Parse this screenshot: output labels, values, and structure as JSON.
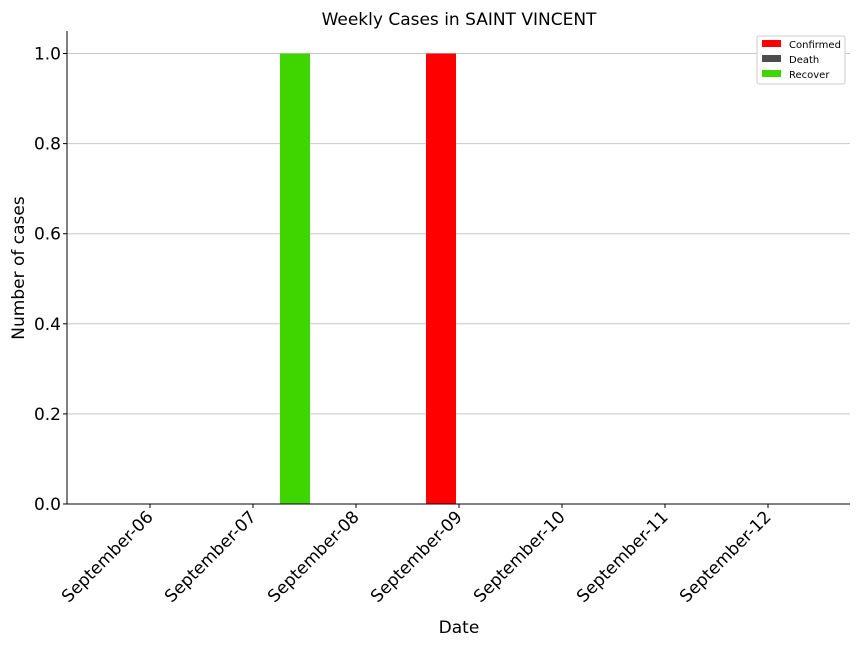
{
  "chart_data": {
    "type": "bar",
    "title": "Weekly Cases in SAINT VINCENT",
    "xlabel": "Date",
    "ylabel": "Number of cases",
    "categories": [
      "September-06",
      "September-07",
      "September-08",
      "September-09",
      "September-10",
      "September-11",
      "September-12"
    ],
    "series": [
      {
        "name": "Confirmed",
        "color": "#ff0000",
        "values": [
          0,
          0,
          0,
          1,
          0,
          0,
          0
        ]
      },
      {
        "name": "Death",
        "color": "#4d4d4d",
        "values": [
          0,
          0,
          0,
          0,
          0,
          0,
          0
        ]
      },
      {
        "name": "Recover",
        "color": "#3fd600",
        "values": [
          0,
          1,
          0,
          0,
          0,
          0,
          0
        ]
      }
    ],
    "ylim": [
      0,
      1.05
    ],
    "yticks": [
      "0.0",
      "0.2",
      "0.4",
      "0.6",
      "0.8",
      "1.0"
    ],
    "grid": "horizontal",
    "legend_position": "top-right"
  }
}
